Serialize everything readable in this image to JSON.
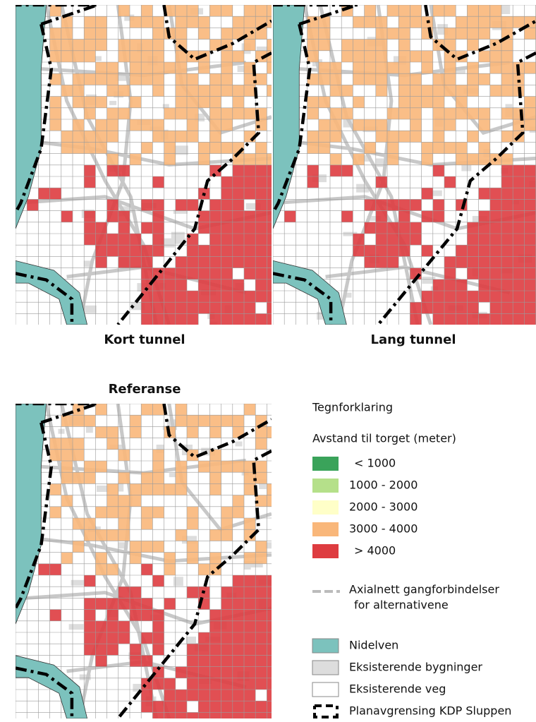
{
  "panels": [
    {
      "title": "Kort tunnel"
    },
    {
      "title": "Lang tunnel"
    },
    {
      "title": "Referanse"
    }
  ],
  "legend": {
    "title": "Tegnforklaring",
    "subtitle": "Avstand til torget (meter)",
    "classes": [
      {
        "label": "< 1000",
        "color": "#3aa35a"
      },
      {
        "label": "1000 - 2000",
        "color": "#b5e08a"
      },
      {
        "label": "2000 - 3000",
        "color": "#ffffc8"
      },
      {
        "label": "3000 - 4000",
        "color": "#f9b77a"
      },
      {
        "label": "> 4000",
        "color": "#de3c40"
      }
    ],
    "network": {
      "lines": [
        "Axialnett gangforbindelser",
        "for alternativene"
      ]
    },
    "items": [
      {
        "label": "Nidelven",
        "color": "#7cc2bd"
      },
      {
        "label": "Eksisterende bygninger",
        "color": "#dddddd"
      },
      {
        "label": "Eksisterende veg",
        "color": "#ffffff"
      },
      {
        "label": "Planavgrensing KDP Sluppen"
      }
    ]
  }
}
